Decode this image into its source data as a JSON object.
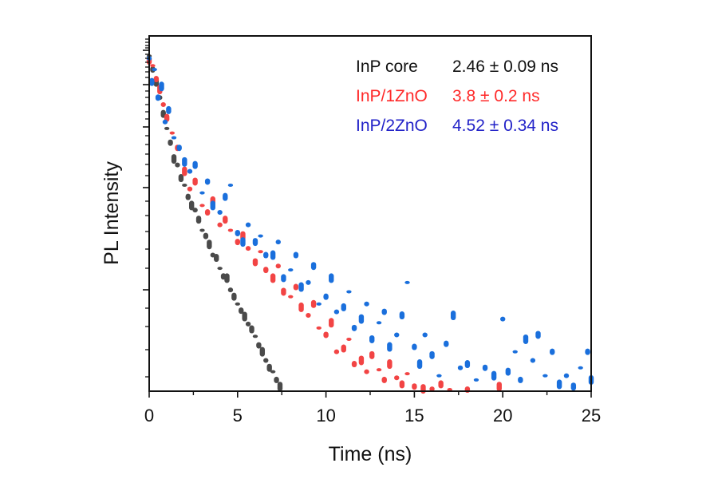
{
  "chart_data": {
    "type": "scatter",
    "title": "",
    "xlabel": "Time (ns)",
    "ylabel": "PL Intensity",
    "xlim": [
      0,
      25
    ],
    "ylim": [
      0.047,
      1.15
    ],
    "yscale": "log",
    "xticks": [
      "0",
      "5",
      "10",
      "15",
      "20",
      "25"
    ],
    "xtick_values": [
      0,
      5,
      10,
      15,
      20,
      25
    ],
    "grid": false,
    "legend_position": "top-right",
    "series": [
      {
        "name": "InP core",
        "lifetime": "2.46 ± 0.09 ns",
        "color": "#4a4a4a",
        "text_color": "#111111",
        "points": [
          [
            0,
            0.96
          ],
          [
            0.2,
            0.85
          ],
          [
            0.4,
            0.76
          ],
          [
            0.6,
            0.66
          ],
          [
            0.8,
            0.57
          ],
          [
            1.0,
            0.5
          ],
          [
            1.2,
            0.44
          ],
          [
            1.4,
            0.38
          ],
          [
            1.6,
            0.36
          ],
          [
            1.8,
            0.32
          ],
          [
            2.0,
            0.3
          ],
          [
            2.2,
            0.27
          ],
          [
            2.4,
            0.25
          ],
          [
            2.6,
            0.24
          ],
          [
            2.8,
            0.22
          ],
          [
            3.0,
            0.2
          ],
          [
            3.2,
            0.19
          ],
          [
            3.4,
            0.176
          ],
          [
            3.6,
            0.16
          ],
          [
            3.8,
            0.156
          ],
          [
            4.0,
            0.142
          ],
          [
            4.2,
            0.132
          ],
          [
            4.4,
            0.13
          ],
          [
            4.6,
            0.117
          ],
          [
            4.8,
            0.11
          ],
          [
            5.0,
            0.103
          ],
          [
            5.2,
            0.097
          ],
          [
            5.4,
            0.092
          ],
          [
            5.6,
            0.086
          ],
          [
            5.8,
            0.082
          ],
          [
            6.0,
            0.077
          ],
          [
            6.2,
            0.071
          ],
          [
            6.4,
            0.067
          ],
          [
            6.6,
            0.062
          ],
          [
            6.8,
            0.058
          ],
          [
            7.0,
            0.056
          ],
          [
            7.2,
            0.052
          ],
          [
            7.4,
            0.049
          ]
        ]
      },
      {
        "name": "InP/1ZnO",
        "lifetime": "3.8 ± 0.2 ns",
        "color": "#f24444",
        "text_color": "#ff2a2a",
        "points": [
          [
            0,
            0.92
          ],
          [
            0.2,
            0.88
          ],
          [
            0.4,
            0.78
          ],
          [
            0.6,
            0.71
          ],
          [
            0.8,
            0.62
          ],
          [
            1.0,
            0.55
          ],
          [
            1.3,
            0.48
          ],
          [
            1.6,
            0.42
          ],
          [
            2.0,
            0.34
          ],
          [
            2.3,
            0.29
          ],
          [
            2.6,
            0.31
          ],
          [
            3.0,
            0.25
          ],
          [
            3.3,
            0.235
          ],
          [
            3.6,
            0.26
          ],
          [
            4.0,
            0.21
          ],
          [
            4.3,
            0.22
          ],
          [
            4.6,
            0.2
          ],
          [
            5.0,
            0.18
          ],
          [
            5.3,
            0.19
          ],
          [
            5.6,
            0.17
          ],
          [
            6.0,
            0.15
          ],
          [
            6.3,
            0.165
          ],
          [
            6.6,
            0.14
          ],
          [
            7.0,
            0.13
          ],
          [
            7.3,
            0.145
          ],
          [
            7.6,
            0.115
          ],
          [
            8.0,
            0.11
          ],
          [
            8.3,
            0.12
          ],
          [
            8.6,
            0.1
          ],
          [
            9.0,
            0.093
          ],
          [
            9.3,
            0.103
          ],
          [
            9.6,
            0.083
          ],
          [
            10.0,
            0.078
          ],
          [
            10.3,
            0.087
          ],
          [
            10.6,
            0.067
          ],
          [
            11.0,
            0.069
          ],
          [
            11.3,
            0.075
          ],
          [
            11.6,
            0.06
          ],
          [
            12.0,
            0.062
          ],
          [
            12.3,
            0.056
          ],
          [
            12.6,
            0.065
          ],
          [
            13.0,
            0.057
          ],
          [
            13.3,
            0.052
          ],
          [
            13.6,
            0.06
          ],
          [
            14.0,
            0.053
          ],
          [
            14.3,
            0.05
          ],
          [
            14.6,
            0.055
          ],
          [
            15.0,
            0.049
          ],
          [
            15.5,
            0.048
          ],
          [
            16.0,
            0.048
          ],
          [
            16.5,
            0.05
          ],
          [
            17.0,
            0.0475
          ],
          [
            18.0,
            0.0472
          ],
          [
            19.8,
            0.049
          ]
        ]
      },
      {
        "name": "InP/2ZnO",
        "lifetime": "4.52 ± 0.34 ns",
        "color": "#1a6fdc",
        "text_color": "#2222c8",
        "points": [
          [
            0,
            0.94
          ],
          [
            0.15,
            0.76
          ],
          [
            0.3,
            0.85
          ],
          [
            0.5,
            0.66
          ],
          [
            0.7,
            0.73
          ],
          [
            0.9,
            0.53
          ],
          [
            1.1,
            0.59
          ],
          [
            1.4,
            0.46
          ],
          [
            1.7,
            0.42
          ],
          [
            2.0,
            0.37
          ],
          [
            2.3,
            0.34
          ],
          [
            2.6,
            0.36
          ],
          [
            3.0,
            0.28
          ],
          [
            3.3,
            0.31
          ],
          [
            3.6,
            0.25
          ],
          [
            4.0,
            0.235
          ],
          [
            4.3,
            0.27
          ],
          [
            4.6,
            0.3
          ],
          [
            5.0,
            0.195
          ],
          [
            5.3,
            0.18
          ],
          [
            5.6,
            0.21
          ],
          [
            6.0,
            0.18
          ],
          [
            6.3,
            0.19
          ],
          [
            6.6,
            0.16
          ],
          [
            7.0,
            0.16
          ],
          [
            7.3,
            0.18
          ],
          [
            7.6,
            0.13
          ],
          [
            8.0,
            0.14
          ],
          [
            8.3,
            0.16
          ],
          [
            8.6,
            0.12
          ],
          [
            9.0,
            0.125
          ],
          [
            9.3,
            0.145
          ],
          [
            9.6,
            0.103
          ],
          [
            10.0,
            0.11
          ],
          [
            10.3,
            0.13
          ],
          [
            10.6,
            0.096
          ],
          [
            11.0,
            0.1
          ],
          [
            11.3,
            0.115
          ],
          [
            11.6,
            0.083
          ],
          [
            12.0,
            0.09
          ],
          [
            12.3,
            0.103
          ],
          [
            12.6,
            0.075
          ],
          [
            13.0,
            0.087
          ],
          [
            13.3,
            0.096
          ],
          [
            13.6,
            0.07
          ],
          [
            14.0,
            0.078
          ],
          [
            14.3,
            0.093
          ],
          [
            14.6,
            0.125
          ],
          [
            15.0,
            0.07
          ],
          [
            15.3,
            0.06
          ],
          [
            15.6,
            0.078
          ],
          [
            16.0,
            0.065
          ],
          [
            16.4,
            0.054
          ],
          [
            16.8,
            0.072
          ],
          [
            17.2,
            0.093
          ],
          [
            17.6,
            0.058
          ],
          [
            18.0,
            0.06
          ],
          [
            18.5,
            0.052
          ],
          [
            19.0,
            0.058
          ],
          [
            19.5,
            0.054
          ],
          [
            20.0,
            0.09
          ],
          [
            20.3,
            0.056
          ],
          [
            20.7,
            0.067
          ],
          [
            21.0,
            0.052
          ],
          [
            21.3,
            0.075
          ],
          [
            21.7,
            0.062
          ],
          [
            22.0,
            0.078
          ],
          [
            22.4,
            0.054
          ],
          [
            22.8,
            0.067
          ],
          [
            23.2,
            0.05
          ],
          [
            23.6,
            0.054
          ],
          [
            24.0,
            0.049
          ],
          [
            24.4,
            0.058
          ],
          [
            24.8,
            0.067
          ],
          [
            25.0,
            0.052
          ]
        ]
      }
    ]
  }
}
